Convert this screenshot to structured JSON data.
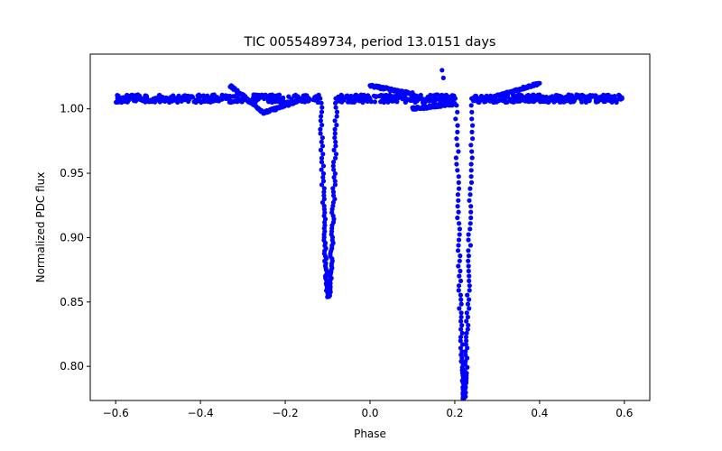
{
  "chart_data": {
    "type": "scatter",
    "title": "TIC 0055489734, period 13.0151 days",
    "xlabel": "Phase",
    "ylabel": "Normalized PDC flux",
    "xlim": [
      -0.66,
      0.66
    ],
    "ylim": [
      0.7735,
      1.0425
    ],
    "xticks": [
      -0.6,
      -0.4,
      -0.2,
      0.0,
      0.2,
      0.4,
      0.6
    ],
    "xtick_labels": [
      "−0.6",
      "−0.4",
      "−0.2",
      "0.0",
      "0.2",
      "0.4",
      "0.6"
    ],
    "yticks": [
      0.8,
      0.85,
      0.9,
      0.95,
      1.0
    ],
    "ytick_labels": [
      "0.80",
      "0.85",
      "0.90",
      "0.95",
      "1.00"
    ],
    "grid": false,
    "series": [
      {
        "name": "flux",
        "color": "#0000ff",
        "components": {
          "baseline": {
            "x_range": [
              -0.6,
              0.6
            ],
            "level": 1.008,
            "scatter": 0.003
          },
          "primary_eclipse": {
            "center": 0.222,
            "depth_min": 0.775,
            "half_width": 0.022
          },
          "secondary_eclipse": {
            "center": -0.098,
            "depth_min": 0.854,
            "half_width": 0.022
          },
          "bumps": [
            {
              "x": [
                -0.33,
                -0.25
              ],
              "y": [
                1.018,
                0.997
              ]
            },
            {
              "x": [
                -0.25,
                -0.17
              ],
              "y": [
                0.997,
                1.006
              ]
            },
            {
              "x": [
                0.0,
                0.1
              ],
              "y": [
                1.018,
                1.012
              ]
            },
            {
              "x": [
                0.1,
                0.2
              ],
              "y": [
                1.0,
                1.004
              ]
            },
            {
              "x": [
                0.3,
                0.4
              ],
              "y": [
                1.01,
                1.02
              ]
            }
          ],
          "outlier": {
            "x": 0.17,
            "y": 1.03
          }
        }
      }
    ]
  }
}
